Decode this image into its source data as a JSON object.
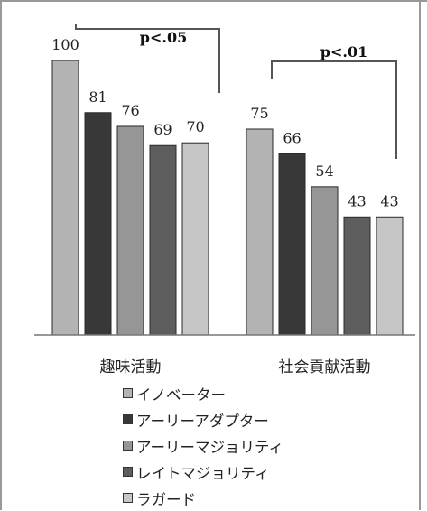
{
  "chart_data": {
    "type": "bar",
    "categories": [
      "趣味活動",
      "社会貢献活動"
    ],
    "series": [
      {
        "name": "イノベーター",
        "values": [
          100,
          75
        ],
        "color": "#b3b3b3"
      },
      {
        "name": "アーリーアダプター",
        "values": [
          81,
          66
        ],
        "color": "#383838"
      },
      {
        "name": "アーリーマジョリティ",
        "values": [
          76,
          54
        ],
        "color": "#969696"
      },
      {
        "name": "レイトマジョリティ",
        "values": [
          69,
          43
        ],
        "color": "#5e5e5e"
      },
      {
        "name": "ラガード",
        "values": [
          70,
          43
        ],
        "color": "#c6c6c6"
      }
    ],
    "ylim": [
      0,
      100
    ],
    "annotations": [
      {
        "text": "p<.05",
        "category": "趣味活動"
      },
      {
        "text": "p<.01",
        "category": "社会貢献活動"
      }
    ],
    "legend_position": "bottom",
    "grid": false
  },
  "legend_marker": "■"
}
